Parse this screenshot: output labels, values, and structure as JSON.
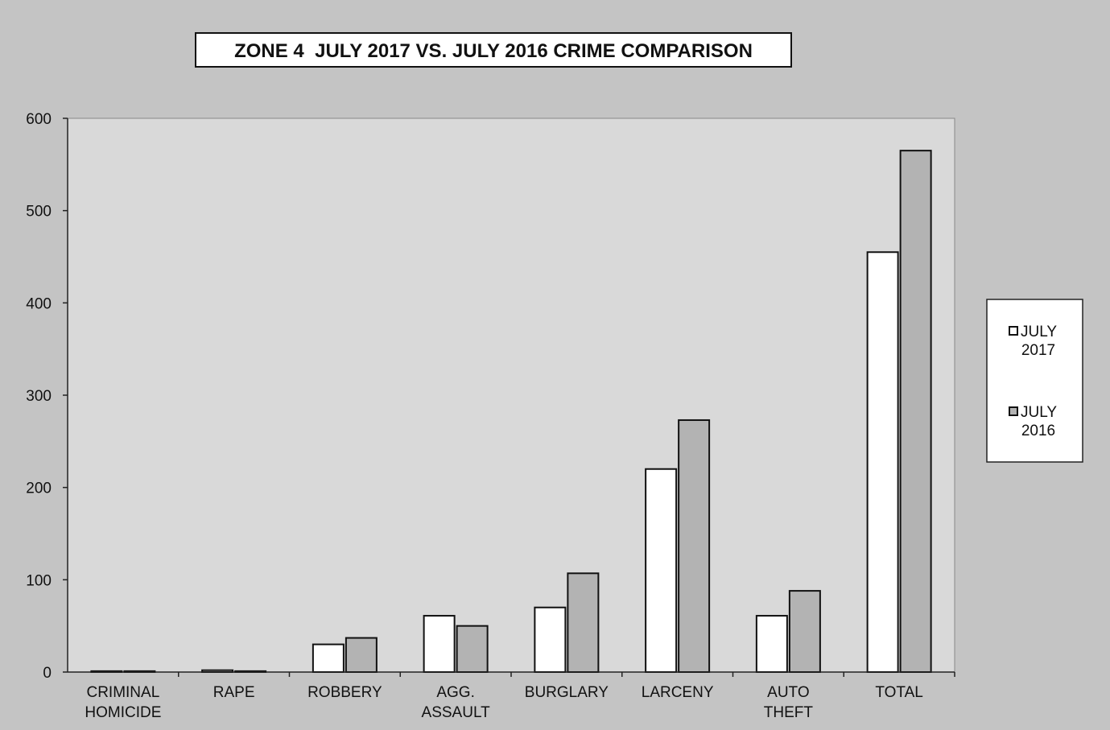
{
  "chart_data": {
    "type": "bar",
    "title": "ZONE 4  JULY 2017 VS. JULY 2016 CRIME COMPARISON",
    "xlabel": "",
    "ylabel": "",
    "ylim": [
      0,
      600
    ],
    "yticks": [
      "0",
      "100",
      "200",
      "300",
      "400",
      "500",
      "600"
    ],
    "categories": [
      [
        "CRIMINAL",
        "HOMICIDE"
      ],
      [
        "RAPE"
      ],
      [
        "ROBBERY"
      ],
      [
        "AGG.",
        "ASSAULT"
      ],
      [
        "BURGLARY"
      ],
      [
        "LARCENY"
      ],
      [
        "AUTO",
        "THEFT"
      ],
      [
        "TOTAL"
      ]
    ],
    "series": [
      {
        "name": "JULY 2017",
        "legend_lines": [
          "JULY",
          "2017"
        ],
        "color": "#ffffff",
        "values": [
          1,
          2,
          30,
          61,
          70,
          220,
          61,
          455
        ]
      },
      {
        "name": "JULY 2016",
        "legend_lines": [
          "JULY",
          "2016"
        ],
        "color": "#b3b3b3",
        "values": [
          1,
          1,
          37,
          50,
          107,
          273,
          88,
          565
        ]
      }
    ],
    "grid": false,
    "legend": "right",
    "colors": {
      "background": "#c4c4c4",
      "plot_area": "#d9d9d9",
      "axis": "#222222"
    }
  }
}
